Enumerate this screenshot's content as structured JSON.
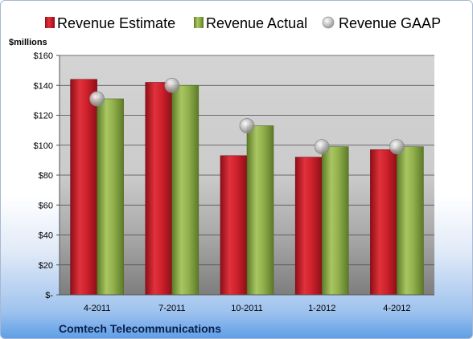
{
  "chart_data": {
    "type": "bar",
    "unit_label": "$millions",
    "company": "Comtech Telecommunications",
    "categories": [
      "4-2011",
      "7-2011",
      "10-2011",
      "1-2012",
      "4-2012"
    ],
    "series": [
      {
        "name": "Revenue Estimate",
        "kind": "bar",
        "color": "#cc1f2a",
        "values": [
          144,
          142,
          93,
          92,
          97
        ]
      },
      {
        "name": "Revenue Actual",
        "kind": "bar",
        "color": "#8fb04a",
        "values": [
          131,
          140,
          113,
          99,
          99
        ]
      },
      {
        "name": "Revenue GAAP",
        "kind": "marker",
        "color": "#bfbfbf",
        "values": [
          131,
          140,
          113,
          99,
          99
        ]
      }
    ],
    "y_ticks": [
      "$-",
      "$20",
      "$40",
      "$60",
      "$80",
      "$100",
      "$120",
      "$140",
      "$160"
    ],
    "ylim": [
      0,
      160
    ],
    "grid": true,
    "legend_position": "top"
  }
}
